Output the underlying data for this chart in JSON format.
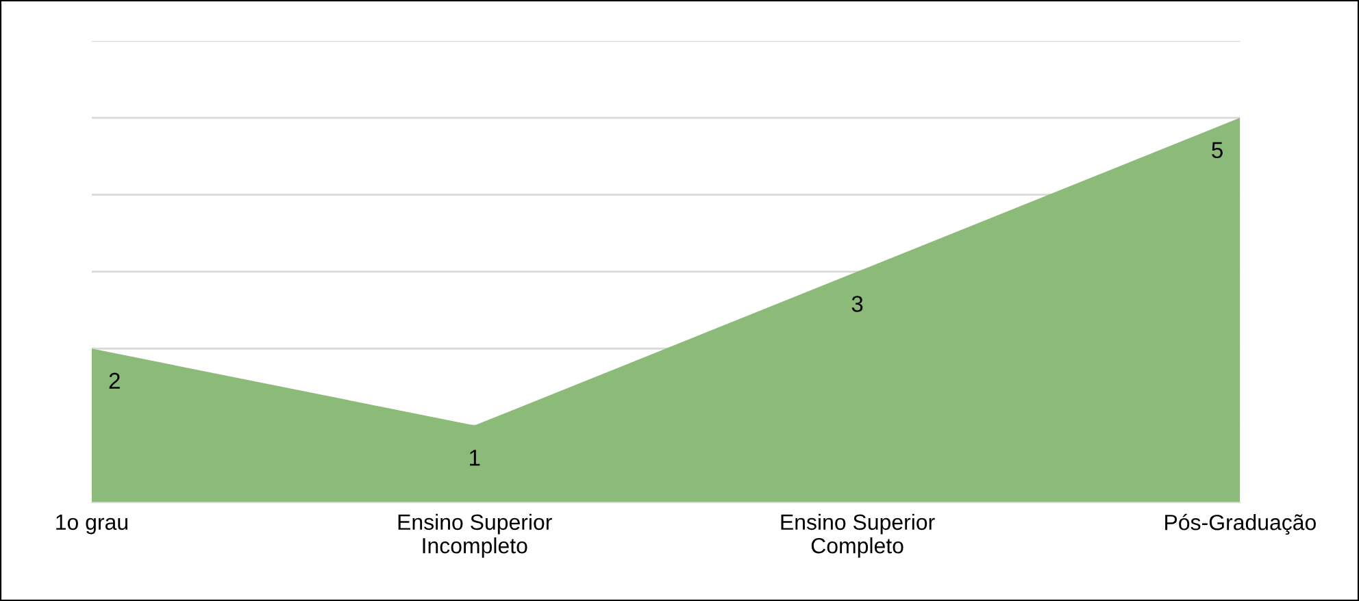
{
  "chart_data": {
    "type": "area",
    "categories": [
      "1o grau",
      "Ensino Superior\nIncompleto",
      "Ensino Superior\nCompleto",
      "Pós-Graduação"
    ],
    "series": [
      {
        "color": "#8cba78",
        "values": [
          2,
          1,
          3,
          5
        ]
      }
    ],
    "ylim": [
      0,
      6
    ],
    "yticks": [
      {
        "value": 1,
        "label": null
      },
      {
        "value": 2,
        "label": null
      },
      {
        "value": 3,
        "label": null
      },
      {
        "value": 4,
        "label": null
      },
      {
        "value": 5,
        "label": null
      },
      {
        "value": 6,
        "label": null
      }
    ],
    "grid": "y",
    "tick_labels": "x",
    "data_labels": true
  }
}
